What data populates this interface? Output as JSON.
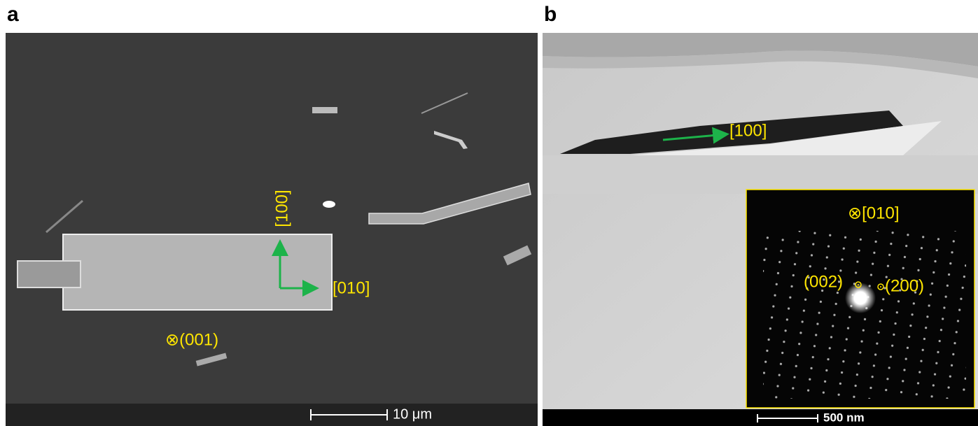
{
  "panels": [
    {
      "label": "a",
      "annotations": [
        "[100]",
        "[010]",
        "⊗(001)"
      ],
      "scale_bar": "10 μm"
    },
    {
      "label": "b",
      "annotations": [
        "[100]"
      ],
      "inset": {
        "annotations": [
          "⊗[010]",
          "(002)",
          "(200)"
        ]
      },
      "scale_bar": "500 nm"
    }
  ]
}
